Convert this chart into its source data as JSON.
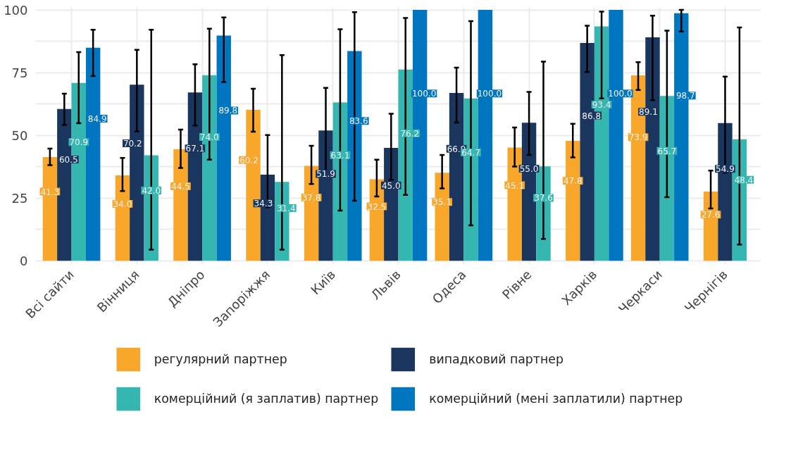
{
  "chart_data": {
    "type": "bar",
    "categories": [
      "Всі сайти",
      "Вінниця",
      "Дніпро",
      "Запоріжжя",
      "Київ",
      "Львів",
      "Одеса",
      "Рівне",
      "Харків",
      "Черкаси",
      "Чернігів"
    ],
    "ylim": [
      -1.5,
      101
    ],
    "yticks": [
      0,
      {
        "value": 12.5,
        "label": null
      },
      25,
      {
        "value": 37.5,
        "label": null
      },
      50,
      {
        "value": 62.5,
        "label": null
      },
      75,
      {
        "value": 87.5,
        "label": null
      },
      100
    ],
    "grid": true,
    "legend": "bottom",
    "series": [
      {
        "name": "регулярний партнер",
        "color": "#f9a72b",
        "values": [
          41.3,
          34.0,
          44.5,
          60.2,
          37.8,
          32.5,
          35.1,
          45.1,
          47.8,
          73.9,
          27.6
        ],
        "value_labels": [
          "41.3",
          "34.0",
          "44.5",
          "60.2",
          "37.8",
          "32.5",
          "35.1",
          "45.1",
          "47.8",
          "73.9",
          "27.6"
        ],
        "errors": [
          [
            38.1,
            44.7
          ],
          [
            27.8,
            41.0
          ],
          [
            37.0,
            52.3
          ],
          [
            51.4,
            68.6
          ],
          [
            30.6,
            45.8
          ],
          [
            25.6,
            40.3
          ],
          [
            28.8,
            42.2
          ],
          [
            37.5,
            53.1
          ],
          [
            41.2,
            54.6
          ],
          [
            68.1,
            79.2
          ],
          [
            20.8,
            35.9
          ]
        ]
      },
      {
        "name": "випадковий партнер",
        "color": "#1a355e",
        "values": [
          60.5,
          70.2,
          67.1,
          34.3,
          51.9,
          45.0,
          66.9,
          55.0,
          86.8,
          89.1,
          54.9
        ],
        "value_labels": [
          "60.5",
          "70.2",
          "67.1",
          "34.3",
          "51.9",
          "45.0",
          "66.9",
          "55.0",
          "86.8",
          "89.1",
          "54.9"
        ],
        "errors": [
          [
            54.2,
            66.6
          ],
          [
            51.5,
            84.1
          ],
          [
            53.9,
            78.3
          ],
          [
            21.3,
            50.1
          ],
          [
            35.0,
            68.9
          ],
          [
            32.3,
            58.6
          ],
          [
            55.1,
            77.0
          ],
          [
            42.2,
            67.3
          ],
          [
            75.2,
            93.7
          ],
          [
            64.0,
            97.7
          ],
          [
            35.1,
            73.4
          ]
        ]
      },
      {
        "name": "комерційний (я заплатив) партнер",
        "color": "#35b6b0",
        "values": [
          70.9,
          42.0,
          74.0,
          31.4,
          63.1,
          76.2,
          64.7,
          37.6,
          93.4,
          65.7,
          48.4
        ],
        "value_labels": [
          "70.9",
          "42.0",
          "74.0",
          "31.4",
          "63.1",
          "76.2",
          "64.7",
          "37.6",
          "93.4",
          "65.7",
          "48.4"
        ],
        "errors": [
          [
            54.8,
            83.2
          ],
          [
            4.4,
            92.1
          ],
          [
            40.3,
            92.5
          ],
          [
            4.4,
            82.0
          ],
          [
            20.0,
            92.3
          ],
          [
            26.2,
            96.8
          ],
          [
            14.1,
            95.5
          ],
          [
            8.7,
            79.4
          ],
          [
            64.7,
            99.3
          ],
          [
            25.3,
            91.7
          ],
          [
            6.4,
            93.0
          ]
        ]
      },
      {
        "name": "комерційний (мені заплатили) партнер",
        "color": "#0176c0",
        "values": [
          84.9,
          null,
          89.8,
          null,
          83.6,
          100.0,
          100.0,
          null,
          100.0,
          98.7,
          null
        ],
        "value_labels": [
          "84.9",
          null,
          "89.8",
          null,
          "83.6",
          "100.0",
          "100.0",
          null,
          "100.0",
          "98.7",
          null
        ],
        "errors": [
          [
            73.6,
            92.1
          ],
          null,
          [
            71.2,
            97.0
          ],
          null,
          [
            23.9,
            99.1
          ],
          null,
          null,
          null,
          null,
          [
            91.4,
            100.0
          ],
          null
        ]
      }
    ]
  }
}
